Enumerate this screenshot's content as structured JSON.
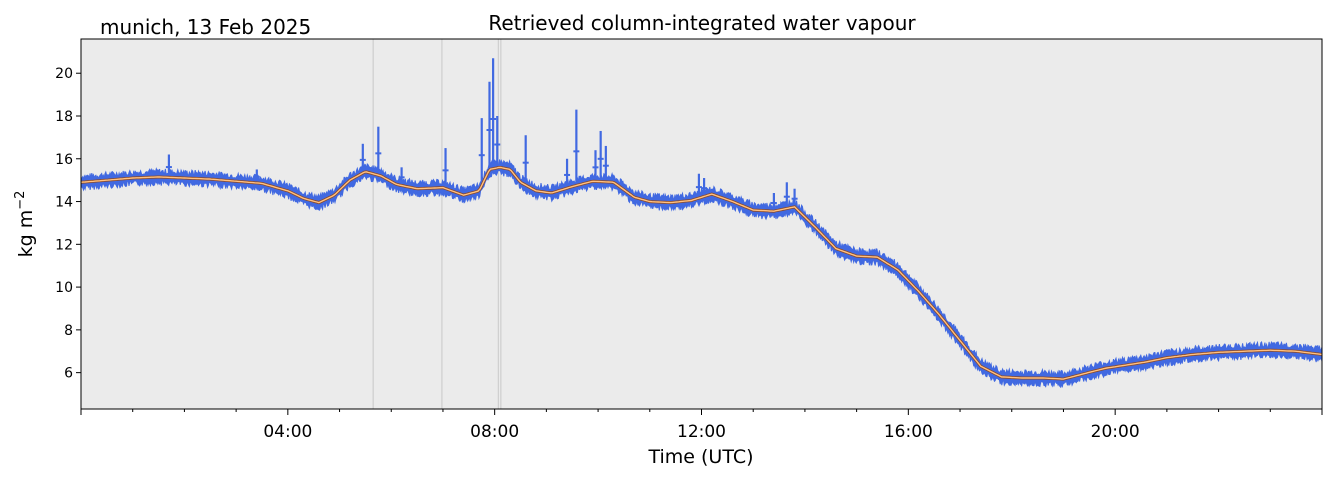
{
  "chart_data": {
    "type": "line",
    "title": "Retrieved column-integrated water vapour",
    "subtitle": "munich, 13 Feb 2025",
    "xlabel": "Time (UTC)",
    "ylabel": "kg m",
    "ylabel_sup": "−2",
    "xlim": [
      0,
      24
    ],
    "ylim": [
      4.3,
      21.6
    ],
    "x_ticks": [
      4,
      8,
      12,
      16,
      20
    ],
    "x_tick_labels": [
      "04:00",
      "08:00",
      "12:00",
      "16:00",
      "20:00"
    ],
    "y_ticks": [
      6,
      8,
      10,
      12,
      14,
      16,
      18,
      20
    ],
    "y_tick_labels": [
      "6",
      "8",
      "10",
      "12",
      "14",
      "16",
      "18",
      "20"
    ],
    "vertical_lines": [
      5.65,
      6.98,
      8.07,
      8.12
    ],
    "grid": false,
    "background": "#ebebeb",
    "series": [
      {
        "color": "#4169e1",
        "values_note_free": true,
        "x": [
          0,
          0.5,
          1,
          1.5,
          2,
          2.5,
          3,
          3.5,
          4,
          4.3,
          4.6,
          4.9,
          5.2,
          5.5,
          5.8,
          6.1,
          6.5,
          7,
          7.4,
          7.7,
          7.9,
          8.1,
          8.3,
          8.5,
          8.8,
          9.1,
          9.5,
          9.9,
          10.3,
          10.7,
          11,
          11.4,
          11.8,
          12.2,
          12.6,
          13,
          13.4,
          13.8,
          14.2,
          14.6,
          15,
          15.4,
          15.8,
          16.2,
          16.6,
          17,
          17.4,
          17.8,
          18.2,
          18.6,
          19,
          19.4,
          19.8,
          20.2,
          20.6,
          21,
          21.5,
          22,
          22.5,
          23,
          23.5,
          24
        ],
        "values": [
          14.9,
          15.0,
          15.1,
          15.15,
          15.1,
          15.05,
          14.95,
          14.85,
          14.5,
          14.15,
          13.95,
          14.3,
          15.0,
          15.4,
          15.2,
          14.8,
          14.6,
          14.65,
          14.3,
          14.5,
          15.5,
          15.6,
          15.5,
          14.9,
          14.5,
          14.4,
          14.7,
          14.95,
          14.9,
          14.2,
          14.0,
          13.95,
          14.05,
          14.35,
          14.0,
          13.6,
          13.55,
          13.75,
          12.8,
          11.8,
          11.45,
          11.4,
          10.8,
          9.8,
          8.7,
          7.5,
          6.3,
          5.8,
          5.75,
          5.75,
          5.7,
          5.95,
          6.2,
          6.35,
          6.5,
          6.7,
          6.85,
          6.95,
          7.0,
          7.05,
          7.0,
          6.85
        ]
      },
      {
        "color": "#ff7f0e",
        "x": [
          0,
          0.5,
          1,
          1.5,
          2,
          2.5,
          3,
          3.5,
          4,
          4.3,
          4.6,
          4.9,
          5.2,
          5.5,
          5.8,
          6.1,
          6.5,
          7,
          7.4,
          7.7,
          7.9,
          8.1,
          8.3,
          8.5,
          8.8,
          9.1,
          9.5,
          9.9,
          10.3,
          10.7,
          11,
          11.4,
          11.8,
          12.2,
          12.6,
          13,
          13.4,
          13.8,
          14.2,
          14.6,
          15,
          15.4,
          15.8,
          16.2,
          16.6,
          17,
          17.4,
          17.8,
          18.2,
          18.6,
          19,
          19.4,
          19.8,
          20.2,
          20.6,
          21,
          21.5,
          22,
          22.5,
          23,
          23.5,
          24
        ],
        "values": [
          14.9,
          15.0,
          15.1,
          15.15,
          15.1,
          15.05,
          14.95,
          14.85,
          14.5,
          14.15,
          13.95,
          14.3,
          15.0,
          15.4,
          15.2,
          14.8,
          14.6,
          14.65,
          14.3,
          14.5,
          15.5,
          15.6,
          15.5,
          14.9,
          14.5,
          14.4,
          14.7,
          14.95,
          14.9,
          14.2,
          14.0,
          13.95,
          14.05,
          14.35,
          14.0,
          13.6,
          13.55,
          13.75,
          12.8,
          11.8,
          11.45,
          11.4,
          10.8,
          9.8,
          8.7,
          7.5,
          6.3,
          5.8,
          5.75,
          5.75,
          5.7,
          5.95,
          6.2,
          6.35,
          6.5,
          6.7,
          6.85,
          6.95,
          7.0,
          7.05,
          7.0,
          6.85
        ]
      }
    ],
    "spikes": [
      {
        "x": 1.7,
        "top": 16.2
      },
      {
        "x": 3.4,
        "top": 15.5
      },
      {
        "x": 5.45,
        "top": 16.7
      },
      {
        "x": 5.75,
        "top": 17.5
      },
      {
        "x": 6.2,
        "top": 15.6
      },
      {
        "x": 7.05,
        "top": 16.5
      },
      {
        "x": 7.75,
        "top": 17.9
      },
      {
        "x": 7.9,
        "top": 19.6
      },
      {
        "x": 7.97,
        "top": 20.7
      },
      {
        "x": 8.05,
        "top": 18.0
      },
      {
        "x": 8.6,
        "top": 17.1
      },
      {
        "x": 9.4,
        "top": 16.0
      },
      {
        "x": 9.58,
        "top": 18.3
      },
      {
        "x": 9.95,
        "top": 16.4
      },
      {
        "x": 10.05,
        "top": 17.3
      },
      {
        "x": 10.15,
        "top": 16.6
      },
      {
        "x": 11.95,
        "top": 15.3
      },
      {
        "x": 12.05,
        "top": 15.1
      },
      {
        "x": 13.4,
        "top": 14.4
      },
      {
        "x": 13.65,
        "top": 14.9
      },
      {
        "x": 13.8,
        "top": 14.6
      }
    ]
  }
}
